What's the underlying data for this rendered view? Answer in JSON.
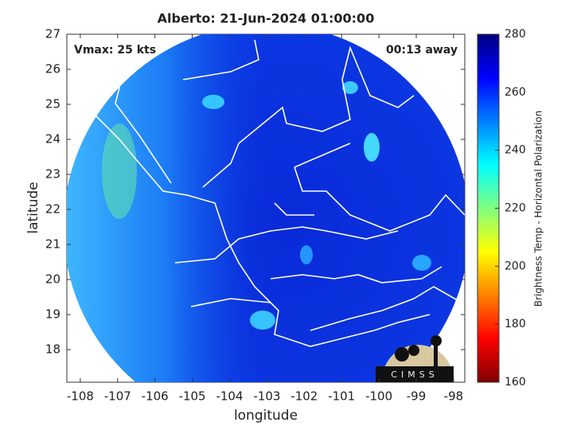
{
  "chart_data": {
    "type": "map",
    "title": "Alberto: 21-Jun-2024 01:00:00",
    "annotations": [
      "Vmax: 25 kts",
      "00:13 away"
    ],
    "xlabel": "longitude",
    "ylabel": "latitude",
    "xlim": [
      -108.36,
      -97.7
    ],
    "ylim": [
      17.07,
      27
    ],
    "xticks": [
      -108,
      -107,
      -106,
      -105,
      -104,
      -103,
      -102,
      -101,
      -100,
      -99,
      -98
    ],
    "yticks": [
      18,
      19,
      20,
      21,
      22,
      23,
      24,
      25,
      26,
      27
    ],
    "colorbar": {
      "label": "Brightness Temp - Horizontal Polarization",
      "lim": [
        160,
        280
      ],
      "ticks": [
        160,
        180,
        200,
        220,
        240,
        260,
        280
      ],
      "colormap": [
        "#800000",
        "#ff0000",
        "#ff8000",
        "#ffff00",
        "#80ff80",
        "#00ffff",
        "#0080ff",
        "#0000ff",
        "#000080"
      ]
    },
    "logo": "CIMSS"
  }
}
